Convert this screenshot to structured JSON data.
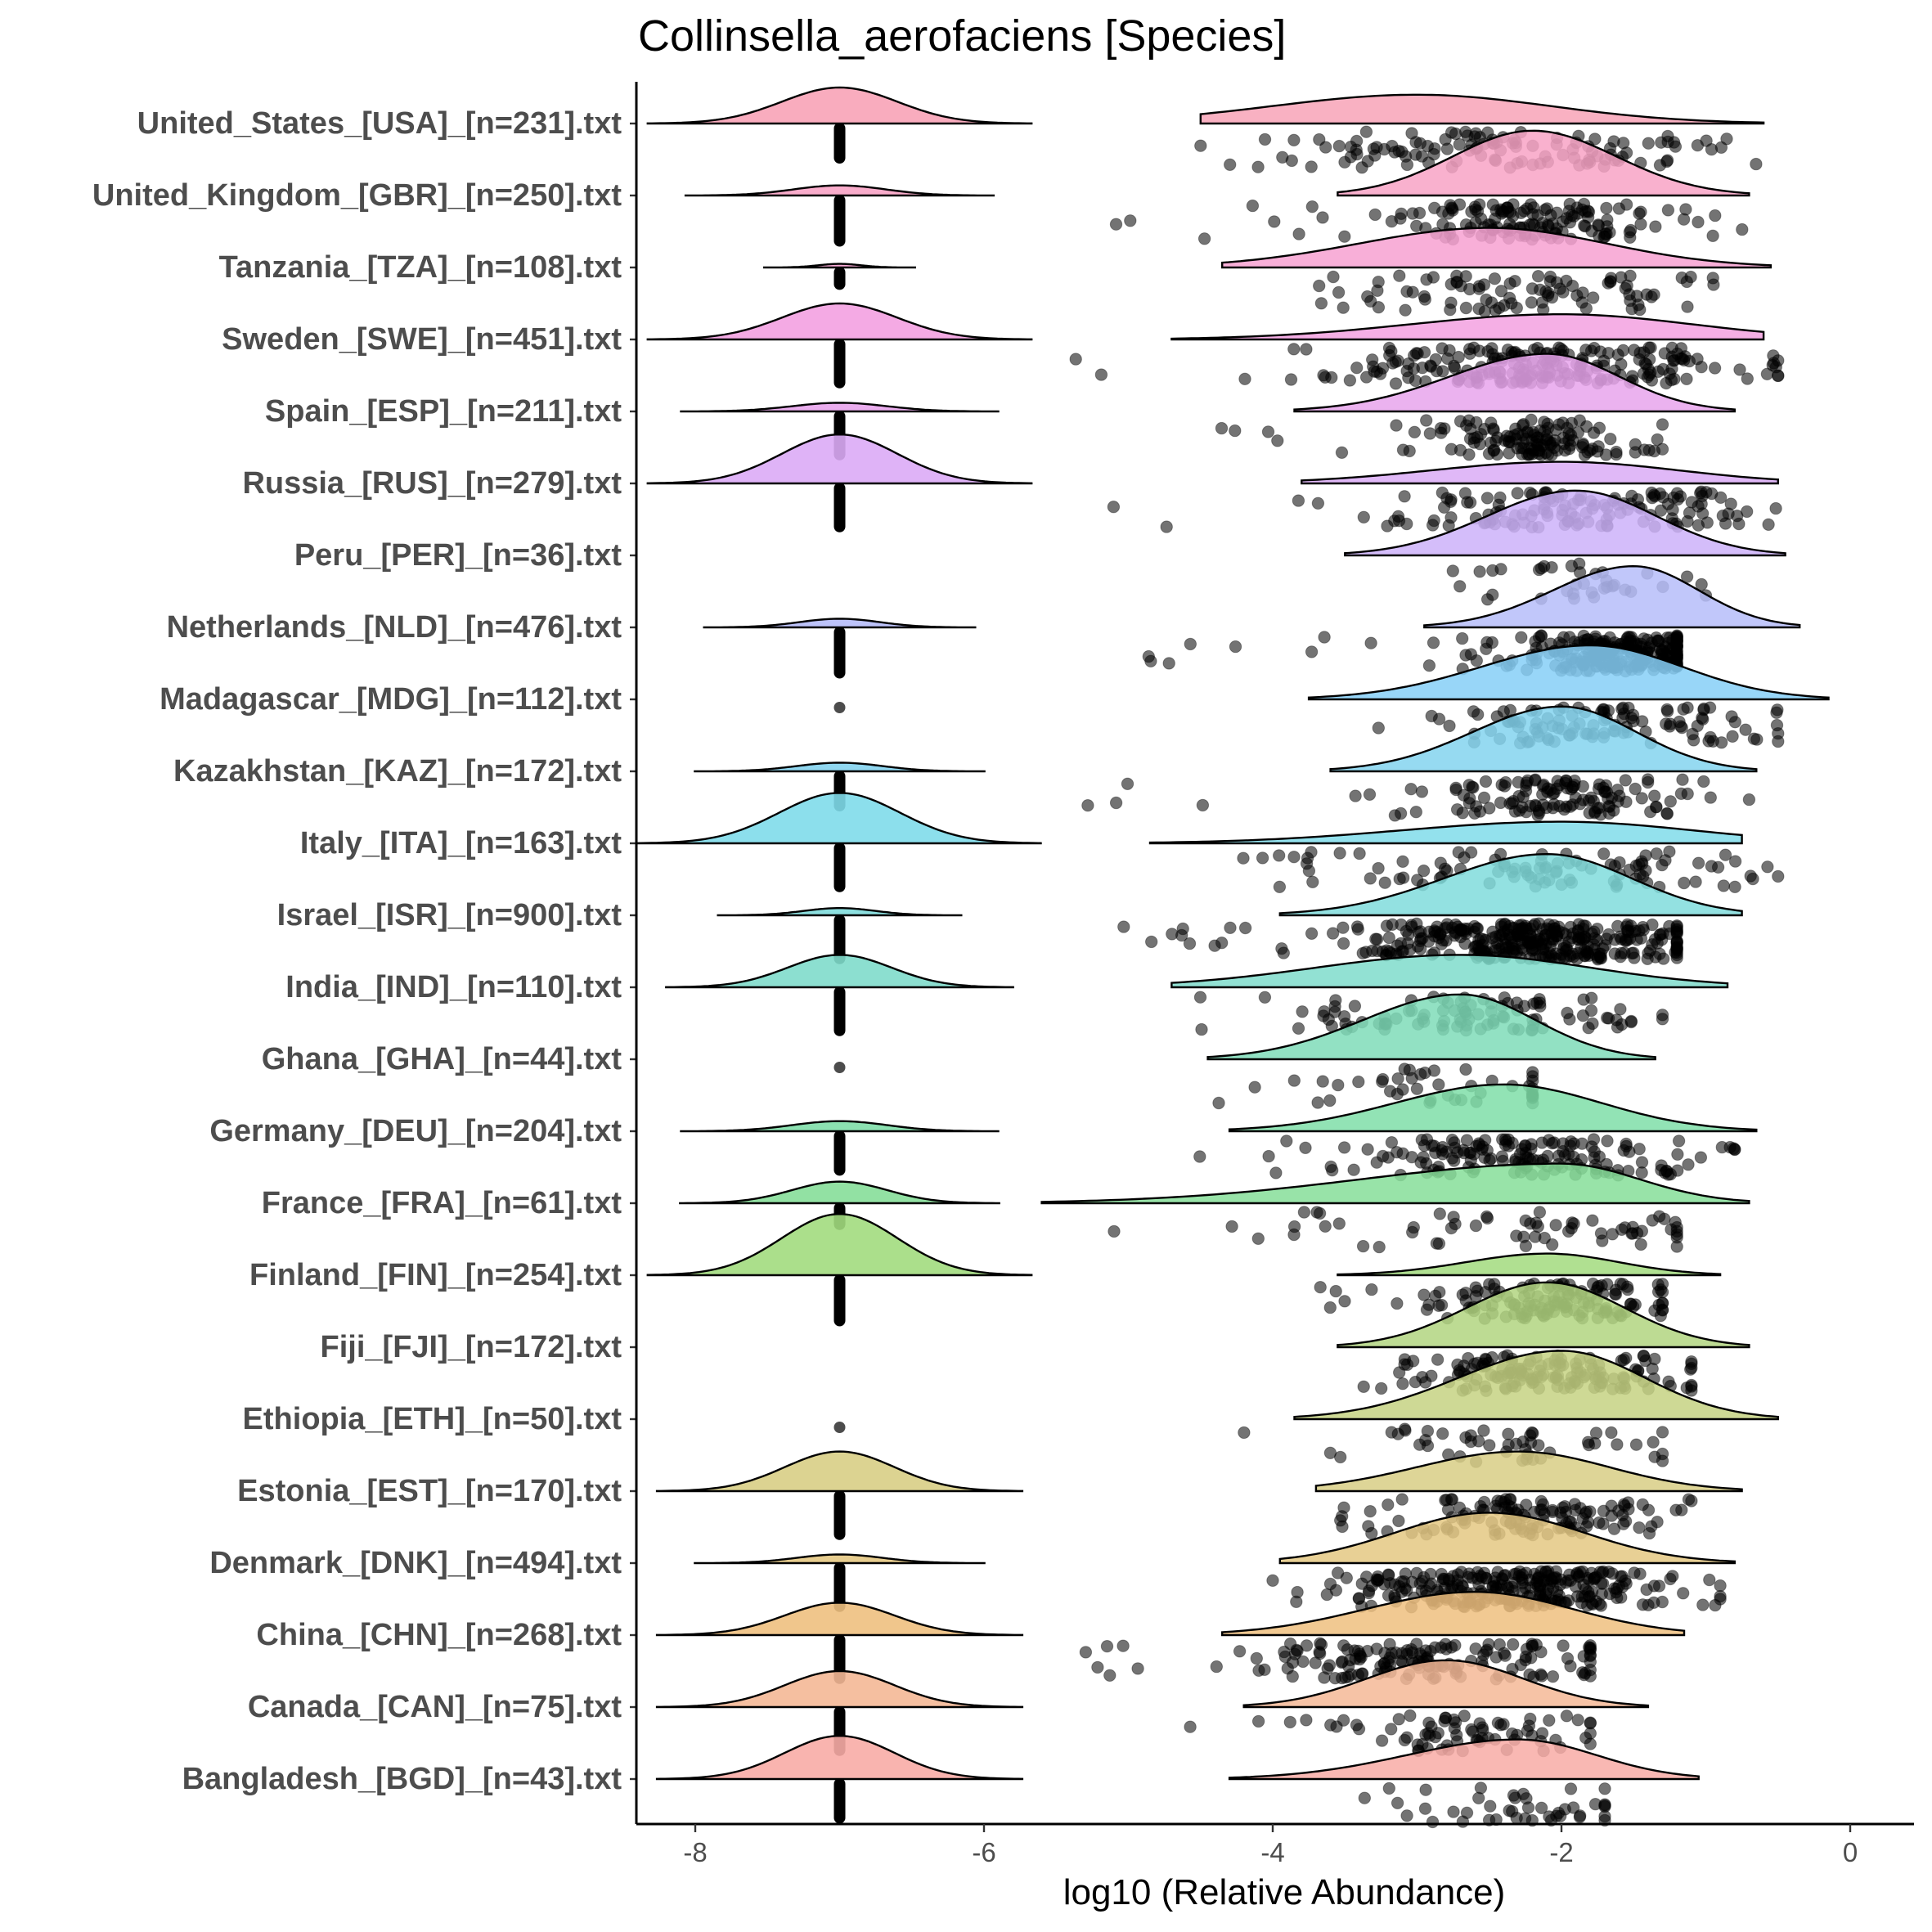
{
  "chart_data": {
    "type": "raincloud",
    "title": "Collinsella_aerofaciens [Species]",
    "xlabel": "log10 (Relative Abundance)",
    "ylabel": "",
    "xlim": [
      -8.4,
      0.4
    ],
    "xticks": [
      -8,
      -6,
      -4,
      -2,
      0
    ],
    "xtick_labels": [
      "-8",
      "-6",
      "-4",
      "-2",
      "0"
    ],
    "grid": false,
    "legend": "none",
    "zero_value": -7,
    "series": [
      {
        "label": "United_States_[USA]_[n=231].txt",
        "color": "#F8A3B7",
        "zero_cloud": {
          "sd": 0.4,
          "h": 0.5
        },
        "main_cloud": {
          "mode": -3.0,
          "min": -4.5,
          "max": -0.6,
          "sd": 1.0,
          "h": 0.4
        },
        "zero_bar": [
          -7.04,
          -6.64
        ],
        "points": {
          "n": 120,
          "center": -2.5,
          "sd": 0.85,
          "min": -4.5,
          "max": -0.6
        }
      },
      {
        "label": "United_Kingdom_[GBR]_[n=250].txt",
        "color": "#F8A3C5",
        "zero_cloud": {
          "sd": 0.32,
          "h": 0.14
        },
        "main_cloud": {
          "mode": -2.2,
          "min": -3.55,
          "max": -0.7,
          "sd": 0.55,
          "h": 0.9
        },
        "zero_bar": [
          -7.04,
          -6.49
        ],
        "points": {
          "n": 150,
          "center": -2.2,
          "sd": 0.45,
          "min": -5.5,
          "max": -0.6
        }
      },
      {
        "label": "Tanzania_[TZA]_[n=108].txt",
        "color": "#F7A1D1",
        "zero_cloud": {
          "sd": 0.15,
          "h": 0.05
        },
        "main_cloud": {
          "mode": -2.5,
          "min": -4.35,
          "max": -0.55,
          "sd": 0.9,
          "h": 0.55
        },
        "zero_bar": [
          -7.04,
          -6.88
        ],
        "points": {
          "n": 90,
          "center": -2.4,
          "sd": 0.7,
          "min": -4.4,
          "max": -0.9
        }
      },
      {
        "label": "Sweden_[SWE]_[n=451].txt",
        "color": "#F3A1E1",
        "zero_cloud": {
          "sd": 0.4,
          "h": 0.5
        },
        "main_cloud": {
          "mode": -2.0,
          "min": -4.7,
          "max": -0.6,
          "sd": 1.0,
          "h": 0.35
        },
        "zero_bar": [
          -7.04,
          -6.52
        ],
        "points": {
          "n": 220,
          "center": -2.2,
          "sd": 0.7,
          "min": -5.8,
          "max": -0.5
        }
      },
      {
        "label": "Spain_[ESP]_[n=211].txt",
        "color": "#E8A4EC",
        "zero_cloud": {
          "sd": 0.33,
          "h": 0.12
        },
        "main_cloud": {
          "mode": -2.1,
          "min": -3.85,
          "max": -0.8,
          "sd": 0.5,
          "h": 0.8
        },
        "zero_bar": [
          -7.04,
          -6.52
        ],
        "points": {
          "n": 140,
          "center": -2.2,
          "sd": 0.45,
          "min": -5.7,
          "max": -1.3
        }
      },
      {
        "label": "Russia_[RUS]_[n=279].txt",
        "color": "#DBABF6",
        "zero_cloud": {
          "sd": 0.4,
          "h": 0.68
        },
        "main_cloud": {
          "mode": -2.0,
          "min": -3.8,
          "max": -0.5,
          "sd": 0.9,
          "h": 0.3
        },
        "zero_bar": [
          -7.04,
          -6.52
        ],
        "points": {
          "n": 140,
          "center": -1.9,
          "sd": 0.65,
          "min": -5.2,
          "max": -0.5
        }
      },
      {
        "label": "Peru_[PER]_[n=36].txt",
        "color": "#CCB1F9",
        "zero_cloud": null,
        "main_cloud": {
          "mode": -1.9,
          "min": -3.5,
          "max": -0.45,
          "sd": 0.55,
          "h": 0.9
        },
        "zero_bar": null,
        "points": {
          "n": 36,
          "center": -1.8,
          "sd": 0.5,
          "min": -3.1,
          "max": -1.0
        }
      },
      {
        "label": "Netherlands_[NLD]_[n=476].txt",
        "color": "#B6BDF9",
        "zero_cloud": {
          "sd": 0.28,
          "h": 0.12
        },
        "main_cloud": {
          "mode": -1.5,
          "min": -2.95,
          "max": -0.35,
          "sd": 0.5,
          "h": 0.85
        },
        "zero_bar": [
          -7.04,
          -6.49
        ],
        "points": {
          "n": 260,
          "center": -1.6,
          "sd": 0.35,
          "min": -5.5,
          "max": -1.2
        }
      },
      {
        "label": "Madagascar_[MDG]_[n=112].txt",
        "color": "#86CFF7",
        "zero_cloud": null,
        "main_cloud": {
          "mode": -1.8,
          "min": -3.75,
          "max": -0.15,
          "sd": 0.7,
          "h": 0.75
        },
        "zero_bar": [
          -7.04,
          -6.93
        ],
        "points": {
          "n": 112,
          "center": -1.7,
          "sd": 0.6,
          "min": -4.1,
          "max": -0.5
        }
      },
      {
        "label": "Kazakhstan_[KAZ]_[n=172].txt",
        "color": "#84D3EE",
        "zero_cloud": {
          "sd": 0.3,
          "h": 0.12
        },
        "main_cloud": {
          "mode": -2.0,
          "min": -3.6,
          "max": -0.65,
          "sd": 0.55,
          "h": 0.9
        },
        "zero_bar": [
          -7.04,
          -6.64
        ],
        "points": {
          "n": 130,
          "center": -2.0,
          "sd": 0.45,
          "min": -5.7,
          "max": -0.7
        }
      },
      {
        "label": "Italy_[ITA]_[n=163].txt",
        "color": "#80DCEA",
        "zero_cloud": {
          "sd": 0.42,
          "h": 0.7
        },
        "main_cloud": {
          "mode": -2.0,
          "min": -4.85,
          "max": -0.75,
          "sd": 1.0,
          "h": 0.3
        },
        "zero_bar": [
          -7.04,
          -6.52
        ],
        "points": {
          "n": 100,
          "center": -2.2,
          "sd": 0.9,
          "min": -5.5,
          "max": -0.5
        }
      },
      {
        "label": "Israel_[ISR]_[n=900].txt",
        "color": "#80DCDC",
        "zero_cloud": {
          "sd": 0.25,
          "h": 0.1
        },
        "main_cloud": {
          "mode": -2.1,
          "min": -3.95,
          "max": -0.75,
          "sd": 0.65,
          "h": 0.85
        },
        "zero_bar": [
          -7.04,
          -6.52
        ],
        "points": {
          "n": 360,
          "center": -2.2,
          "sd": 0.6,
          "min": -5.1,
          "max": -1.2
        }
      },
      {
        "label": "India_[IND]_[n=110].txt",
        "color": "#7FDCCB",
        "zero_cloud": {
          "sd": 0.36,
          "h": 0.45
        },
        "main_cloud": {
          "mode": -2.7,
          "min": -4.7,
          "max": -0.85,
          "sd": 1.0,
          "h": 0.45
        },
        "zero_bar": [
          -7.04,
          -6.52
        ],
        "points": {
          "n": 100,
          "center": -2.6,
          "sd": 0.7,
          "min": -4.6,
          "max": -1.3
        }
      },
      {
        "label": "Ghana_[GHA]_[n=44].txt",
        "color": "#7FDCB9",
        "zero_cloud": null,
        "main_cloud": {
          "mode": -2.7,
          "min": -4.45,
          "max": -1.35,
          "sd": 0.55,
          "h": 0.9
        },
        "zero_bar": [
          -7.04,
          -6.96
        ],
        "points": {
          "n": 44,
          "center": -2.8,
          "sd": 0.5,
          "min": -4.4,
          "max": -2.2
        }
      },
      {
        "label": "Germany_[DEU]_[n=204].txt",
        "color": "#7FDEA8",
        "zero_cloud": {
          "sd": 0.33,
          "h": 0.14
        },
        "main_cloud": {
          "mode": -2.4,
          "min": -4.3,
          "max": -0.65,
          "sd": 0.75,
          "h": 0.65
        },
        "zero_bar": [
          -7.04,
          -6.58
        ],
        "points": {
          "n": 160,
          "center": -2.3,
          "sd": 0.6,
          "min": -4.7,
          "max": -0.8
        }
      },
      {
        "label": "France_[FRA]_[n=61].txt",
        "color": "#86DE99",
        "zero_cloud": {
          "sd": 0.33,
          "h": 0.3
        },
        "main_cloud": {
          "mode": -2.0,
          "min": -5.6,
          "max": -0.7,
          "sd": 0.6,
          "h": 0.55
        },
        "zero_bar": [
          -7.04,
          -6.82
        ],
        "points": {
          "n": 61,
          "center": -2.3,
          "sd": 0.9,
          "min": -5.6,
          "max": -1.2
        }
      },
      {
        "label": "Finland_[FIN]_[n=254].txt",
        "color": "#A2DB7E",
        "zero_cloud": {
          "sd": 0.4,
          "h": 0.85
        },
        "main_cloud": {
          "mode": -2.1,
          "min": -3.55,
          "max": -0.9,
          "sd": 0.55,
          "h": 0.3
        },
        "zero_bar": [
          -7.04,
          -6.49
        ],
        "points": {
          "n": 140,
          "center": -2.1,
          "sd": 0.45,
          "min": -3.9,
          "max": -1.3
        }
      },
      {
        "label": "Fiji_[FJI]_[n=172].txt",
        "color": "#B2D580",
        "zero_cloud": null,
        "main_cloud": {
          "mode": -2.1,
          "min": -3.55,
          "max": -0.7,
          "sd": 0.55,
          "h": 0.9
        },
        "zero_bar": null,
        "points": {
          "n": 150,
          "center": -2.1,
          "sd": 0.5,
          "min": -3.5,
          "max": -1.1
        }
      },
      {
        "label": "Ethiopia_[ETH]_[n=50].txt",
        "color": "#C6D283",
        "zero_cloud": null,
        "main_cloud": {
          "mode": -2.0,
          "min": -3.85,
          "max": -0.5,
          "sd": 0.55,
          "h": 0.95
        },
        "zero_bar": [
          -7.04,
          -6.96
        ],
        "points": {
          "n": 50,
          "center": -2.1,
          "sd": 0.6,
          "min": -5.0,
          "max": -1.3
        }
      },
      {
        "label": "Estonia_[EST]_[n=170].txt",
        "color": "#D8CE85",
        "zero_cloud": {
          "sd": 0.38,
          "h": 0.55
        },
        "main_cloud": {
          "mode": -2.3,
          "min": -3.7,
          "max": -0.75,
          "sd": 0.7,
          "h": 0.55
        },
        "zero_bar": [
          -7.04,
          -6.52
        ],
        "points": {
          "n": 130,
          "center": -2.2,
          "sd": 0.55,
          "min": -3.7,
          "max": -1.1
        }
      },
      {
        "label": "Denmark_[DNK]_[n=494].txt",
        "color": "#E4C883",
        "zero_cloud": {
          "sd": 0.3,
          "h": 0.12
        },
        "main_cloud": {
          "mode": -2.5,
          "min": -3.95,
          "max": -0.8,
          "sd": 0.65,
          "h": 0.7
        },
        "zero_bar": [
          -7.04,
          -6.52
        ],
        "points": {
          "n": 280,
          "center": -2.3,
          "sd": 0.55,
          "min": -4.0,
          "max": -0.9
        }
      },
      {
        "label": "China_[CHN]_[n=268].txt",
        "color": "#EEC07F",
        "zero_cloud": {
          "sd": 0.38,
          "h": 0.45
        },
        "main_cloud": {
          "mode": -2.6,
          "min": -4.35,
          "max": -1.15,
          "sd": 0.75,
          "h": 0.6
        },
        "zero_bar": [
          -7.04,
          -6.52
        ],
        "points": {
          "n": 160,
          "center": -2.8,
          "sd": 0.6,
          "min": -5.4,
          "max": -1.8
        }
      },
      {
        "label": "Canada_[CAN]_[n=75].txt",
        "color": "#F4B896",
        "zero_cloud": {
          "sd": 0.38,
          "h": 0.5
        },
        "main_cloud": {
          "mode": -2.8,
          "min": -4.2,
          "max": -1.4,
          "sd": 0.55,
          "h": 0.65
        },
        "zero_bar": [
          -7.04,
          -6.52
        ],
        "points": {
          "n": 75,
          "center": -2.7,
          "sd": 0.5,
          "min": -5.1,
          "max": -1.8
        }
      },
      {
        "label": "Bangladesh_[BGD]_[n=43].txt",
        "color": "#F8ACA6",
        "zero_cloud": {
          "sd": 0.38,
          "h": 0.6
        },
        "main_cloud": {
          "mode": -2.3,
          "min": -4.3,
          "max": -1.05,
          "sd": 0.6,
          "h": 0.55
        },
        "zero_bar": [
          -7.04,
          -6.58
        ],
        "points": {
          "n": 43,
          "center": -2.2,
          "sd": 0.5,
          "min": -4.3,
          "max": -1.7
        }
      }
    ]
  }
}
